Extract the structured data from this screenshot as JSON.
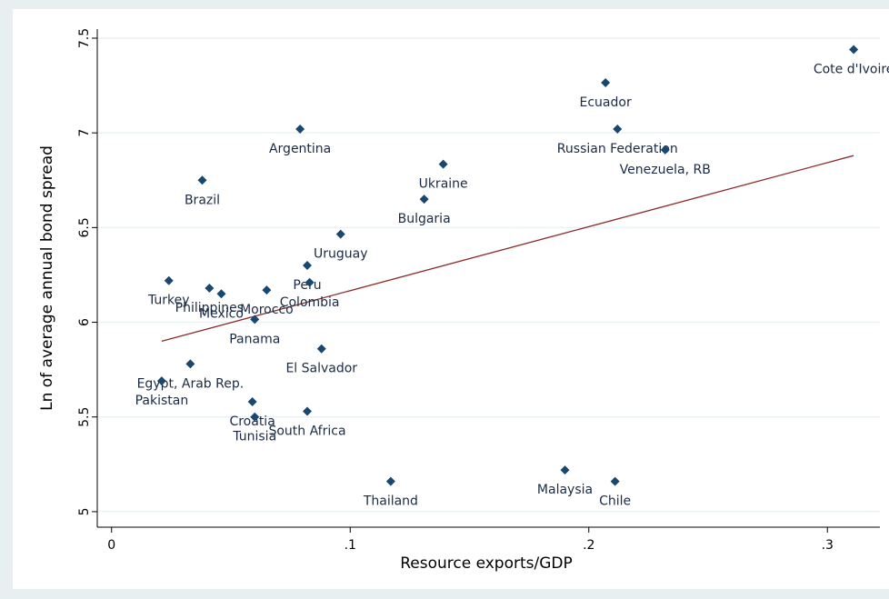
{
  "chart_data": {
    "type": "scatter",
    "x_label": "Resource exports/GDP",
    "y_label": "Ln of average annual bond spread",
    "xlim": [
      -0.006,
      0.322
    ],
    "ylim": [
      4.918,
      7.548
    ],
    "xticks": [
      0,
      {
        "value": 0.1,
        "label": ".1"
      },
      {
        "value": 0.2,
        "label": ".2"
      },
      {
        "value": 0.3,
        "label": ".3"
      }
    ],
    "yticks": [
      5,
      5.5,
      6,
      6.5,
      7,
      7.5
    ],
    "grid": true,
    "series": [
      {
        "color": "#1a476f",
        "labels": [
          "Cote d'Ivoire",
          "Ecuador",
          "Russian Federation",
          "Venezuela, RB",
          "Argentina",
          "Brazil",
          "Ukraine",
          "Bulgaria",
          "Uruguay",
          "Peru",
          "Colombia",
          "Turkey",
          "Philippines",
          "Morocco",
          "Mexico",
          "Panama",
          "El Salvador",
          "Egypt, Arab Rep.",
          "Pakistan",
          "Croatia",
          "Tunisia",
          "South Africa",
          "Thailand",
          "Malaysia",
          "Chile"
        ],
        "x": [
          0.311,
          0.207,
          0.212,
          0.232,
          0.079,
          0.038,
          0.139,
          0.131,
          0.096,
          0.082,
          0.083,
          0.024,
          0.041,
          0.065,
          0.046,
          0.06,
          0.088,
          0.033,
          0.021,
          0.059,
          0.06,
          0.082,
          0.117,
          0.19,
          0.211
        ],
        "values": [
          7.44,
          7.265,
          7.02,
          6.91,
          7.02,
          6.75,
          6.835,
          6.65,
          6.465,
          6.3,
          6.21,
          6.22,
          6.18,
          6.17,
          6.15,
          6.015,
          5.86,
          5.78,
          5.69,
          5.58,
          5.5,
          5.53,
          5.16,
          5.22,
          5.16
        ]
      }
    ],
    "fit_line": {
      "color": "#8b2c2c",
      "x": [
        0.021,
        0.311
      ],
      "values": [
        5.9,
        6.88
      ]
    }
  }
}
